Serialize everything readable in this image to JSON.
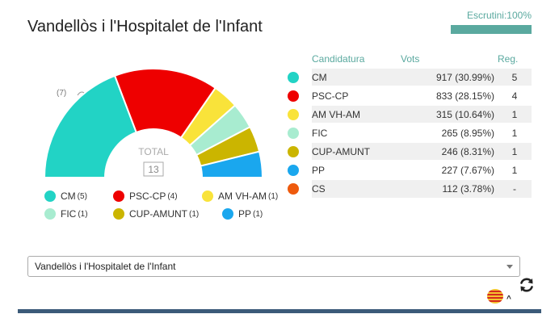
{
  "title": "Vandellòs i l'Hospitalet de l'Infant",
  "scrutini": {
    "label": "Escrutini:100%",
    "progress": 1.0
  },
  "hemicycle": {
    "total_label": "TOTAL",
    "total_value": "13",
    "note": "(7)",
    "colors": {
      "CM": "#22d3c5",
      "PSC-CP": "#ee0000",
      "AM VH-AM": "#f9e33a",
      "FIC": "#a8ecd0",
      "CUP-AMUNT": "#cbb500",
      "PP": "#1aa7ee",
      "CS": "#ee5a0d"
    }
  },
  "legend": [
    {
      "name": "CM",
      "seats": "(5)",
      "color": "#22d3c5"
    },
    {
      "name": "PSC-CP",
      "seats": "(4)",
      "color": "#ee0000"
    },
    {
      "name": "AM VH-AM",
      "seats": "(1)",
      "color": "#f9e33a"
    },
    {
      "name": "FIC",
      "seats": "(1)",
      "color": "#a8ecd0"
    },
    {
      "name": "CUP-AMUNT",
      "seats": "(1)",
      "color": "#cbb500"
    },
    {
      "name": "PP",
      "seats": "(1)",
      "color": "#1aa7ee"
    }
  ],
  "table": {
    "headers": {
      "party": "Candidatura",
      "votes": "Vots",
      "seats": "Reg."
    },
    "rows": [
      {
        "party": "CM",
        "votes": "917 (30.99%)",
        "seats": "5",
        "color": "#22d3c5"
      },
      {
        "party": "PSC-CP",
        "votes": "833 (28.15%)",
        "seats": "4",
        "color": "#ee0000"
      },
      {
        "party": "AM VH-AM",
        "votes": "315 (10.64%)",
        "seats": "1",
        "color": "#f9e33a"
      },
      {
        "party": "FIC",
        "votes": "265 (8.95%)",
        "seats": "1",
        "color": "#a8ecd0"
      },
      {
        "party": "CUP-AMUNT",
        "votes": "246 (8.31%)",
        "seats": "1",
        "color": "#cbb500"
      },
      {
        "party": "PP",
        "votes": "227 (7.67%)",
        "seats": "1",
        "color": "#1aa7ee"
      },
      {
        "party": "CS",
        "votes": "112 (3.78%)",
        "seats": "-",
        "color": "#ee5a0d"
      }
    ]
  },
  "select": {
    "value": "Vandellòs i l'Hospitalet de l'Infant"
  },
  "icons": {
    "language": "catalan-flag-icon",
    "refresh": "refresh-icon"
  }
}
